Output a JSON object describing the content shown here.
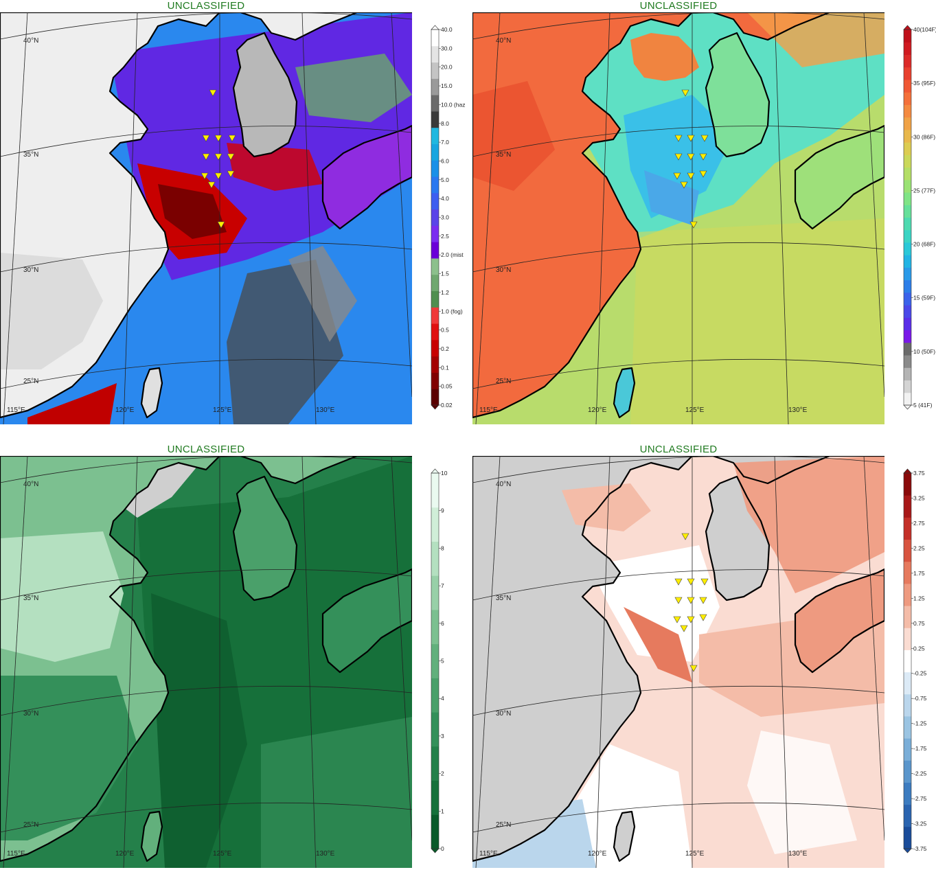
{
  "panels": [
    {
      "title": "UNCLASSIFIED",
      "kind": "visibility",
      "colorbar": {
        "labels": [
          "0.02",
          "0.05",
          "0.1",
          "0.2",
          "0.5",
          "1.0 (fog)",
          "1.2",
          "1.5",
          "2.0 (mist",
          "2.5",
          "3.0",
          "4.0",
          "5.0",
          "6.0",
          "7.0",
          "8.0",
          "10.0 (haz",
          "15.0",
          "20.0",
          "30.0",
          "40.0"
        ],
        "colors": [
          "#5a0000",
          "#800000",
          "#a40000",
          "#c80000",
          "#e01010",
          "#f03a3a",
          "#4f8f4f",
          "#6fa86f",
          "#8cc08c",
          "#6a00d8",
          "#7a2cf0",
          "#5a44e8",
          "#3d5ef0",
          "#2a78f0",
          "#1a90e8",
          "#18a6e0",
          "#20b8e0",
          "#3a3a3a",
          "#6a6a6a",
          "#9a9a9a",
          "#c4c4c4",
          "#e4e4e4",
          "#ffffff"
        ]
      },
      "markers": true
    },
    {
      "title": "UNCLASSIFIED",
      "kind": "temperature",
      "colorbar": {
        "labels": [
          "5 (41F)",
          "10 (50F)",
          "15 (59F)",
          "20 (68F)",
          "25 (77F)",
          "30 (86F)",
          "35 (95F)",
          "40(104F)"
        ],
        "colors": [
          "#f2f2f2",
          "#d4d4d4",
          "#b4b4b4",
          "#8a8a8a",
          "#6a6a6a",
          "#7a18e8",
          "#5a2ee8",
          "#4a48e8",
          "#3a62ea",
          "#2c7ee8",
          "#2a9ae8",
          "#22b4e4",
          "#2ac8d8",
          "#3ad4c4",
          "#4edab0",
          "#66e09a",
          "#80e486",
          "#9ae274",
          "#b4de66",
          "#cad85a",
          "#dccc52",
          "#e8b84c",
          "#f0a246",
          "#f48a40",
          "#f4703a",
          "#f05834",
          "#e8402e",
          "#dc2a28",
          "#d01a20",
          "#c0101a"
        ]
      },
      "markers": true
    },
    {
      "title": "UNCLASSIFIED",
      "kind": "green",
      "colorbar": {
        "labels": [
          "0",
          "1",
          "2",
          "3",
          "4",
          "5",
          "6",
          "7",
          "8",
          "9",
          "10"
        ],
        "colors": [
          "#0a5a2a",
          "#16703a",
          "#24804a",
          "#34905a",
          "#4aa06a",
          "#62b07c",
          "#7cc090",
          "#98d0a8",
          "#b4e0c0",
          "#d0eed8",
          "#eafaf0"
        ]
      },
      "markers": false
    },
    {
      "title": "UNCLASSIFIED",
      "kind": "anomaly",
      "colorbar": {
        "labels": [
          "-3.75",
          "-3.25",
          "-2.75",
          "-2.25",
          "-1.75",
          "-1.25",
          "-0.75",
          "-0.25",
          "0.25",
          "0.75",
          "1.25",
          "1.75",
          "2.25",
          "2.75",
          "3.25",
          "3.75"
        ],
        "colors": [
          "#1a4c9a",
          "#2a64b0",
          "#3c7cc0",
          "#5a96cc",
          "#7aaed8",
          "#9ac4e2",
          "#bad6ec",
          "#dceaf6",
          "#ffffff",
          "#fadcd2",
          "#f4bca8",
          "#ee9a80",
          "#e67a5e",
          "#d85440",
          "#c43028",
          "#a81818",
          "#8a0a0a"
        ]
      },
      "markers": true
    }
  ],
  "map": {
    "lat_labels": [
      "40°N",
      "35°N",
      "30°N",
      "25°N"
    ],
    "lon_labels": [
      "115°E",
      "120°E",
      "125°E",
      "130°E"
    ]
  },
  "icons": {
    "station_marker": "inverted-triangle-icon"
  },
  "colors": {
    "title": "#1f7a1f",
    "land_missing": "#cfcfcf",
    "marker_fill": "#ffee00"
  }
}
